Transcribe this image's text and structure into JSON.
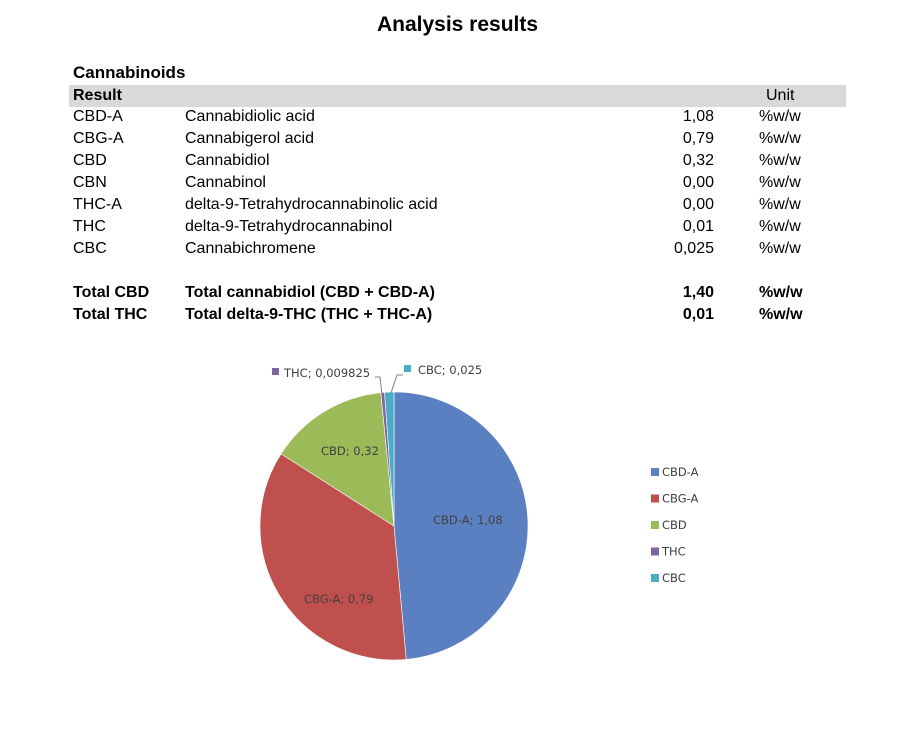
{
  "title": "Analysis results",
  "section": "Cannabinoids",
  "header": {
    "result": "Result",
    "unit": "Unit"
  },
  "rows": [
    {
      "code": "CBD-A",
      "name": "Cannabidiolic acid",
      "value": "1,08",
      "unit": "%w/w"
    },
    {
      "code": "CBG-A",
      "name": "Cannabigerol acid",
      "value": "0,79",
      "unit": "%w/w"
    },
    {
      "code": "CBD",
      "name": "Cannabidiol",
      "value": "0,32",
      "unit": "%w/w"
    },
    {
      "code": "CBN",
      "name": "Cannabinol",
      "value": "0,00",
      "unit": "%w/w"
    },
    {
      "code": "THC-A",
      "name": "delta-9-Tetrahydrocannabinolic acid",
      "value": "0,00",
      "unit": "%w/w"
    },
    {
      "code": "THC",
      "name": "delta-9-Tetrahydrocannabinol",
      "value": "0,01",
      "unit": "%w/w"
    },
    {
      "code": "CBC",
      "name": "Cannabichromene",
      "value": "0,025",
      "unit": "%w/w"
    }
  ],
  "totals": [
    {
      "code": "Total CBD",
      "name": "Total cannabidiol (CBD + CBD-A)",
      "value": "1,40",
      "unit": "%w/w"
    },
    {
      "code": "Total THC",
      "name": "Total delta-9-THC (THC + THC-A)",
      "value": "0,01",
      "unit": "%w/w"
    }
  ],
  "chart_data": {
    "type": "pie",
    "legend_position": "right",
    "slices": [
      {
        "name": "CBD-A",
        "value": 1.08,
        "label": "CBD-A; 1,08",
        "color": "#5b80c2"
      },
      {
        "name": "CBG-A",
        "value": 0.79,
        "label": "CBG-A; 0,79",
        "color": "#c0504d"
      },
      {
        "name": "CBD",
        "value": 0.32,
        "label": "CBD; 0,32",
        "color": "#9bbb59"
      },
      {
        "name": "THC",
        "value": 0.009825,
        "label": "THC; 0,009825",
        "color": "#8064a2"
      },
      {
        "name": "CBC",
        "value": 0.025,
        "label": "CBC; 0,025",
        "color": "#4bacc6"
      }
    ]
  }
}
